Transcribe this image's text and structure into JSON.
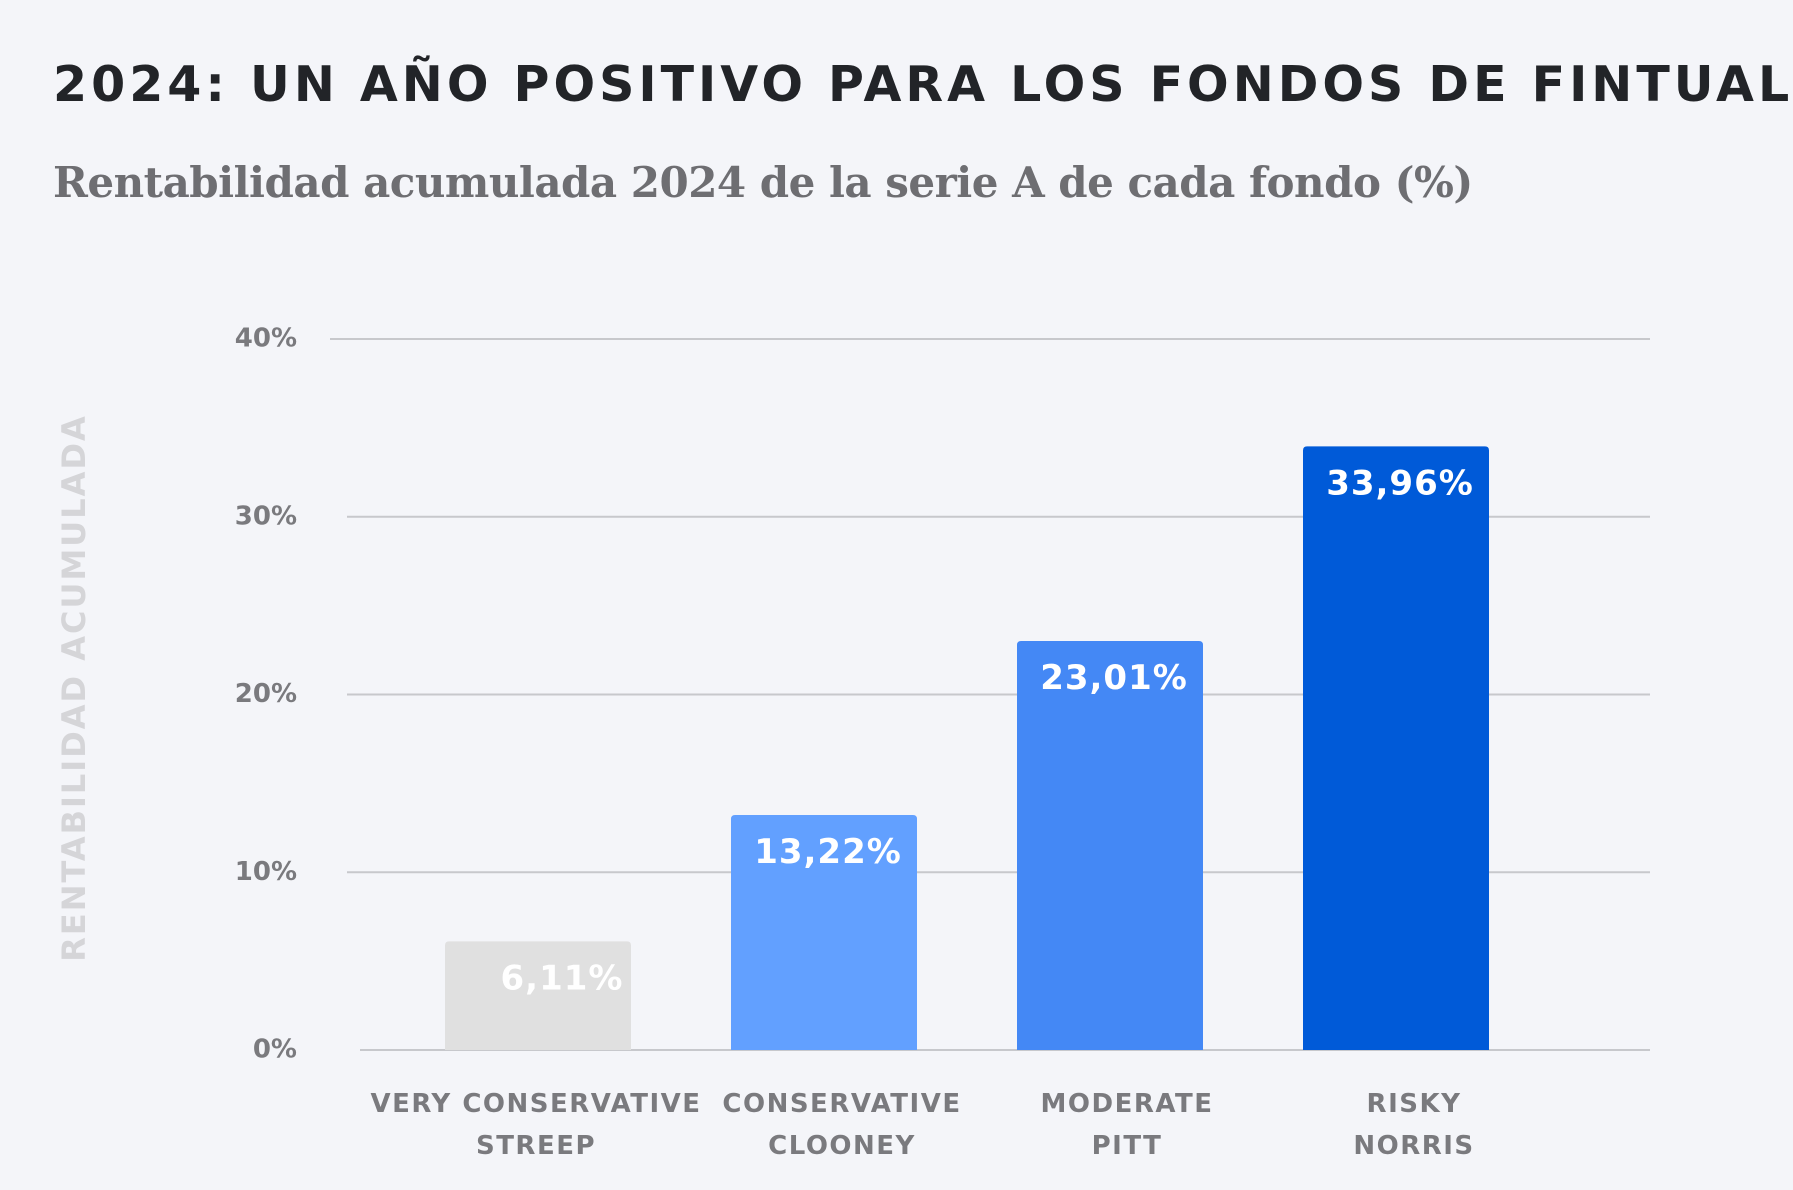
{
  "chart_data": {
    "type": "bar",
    "title": "2024: UN AÑO POSITIVO PARA LOS FONDOS DE FINTUAL",
    "subtitle": "Rentabilidad acumulada 2024 de la serie A de cada fondo (%)",
    "xlabel": "",
    "ylabel": "RENTABILIDAD ACUMULADA",
    "ylim": [
      0,
      40
    ],
    "yticks": [
      {
        "value": 0,
        "label": "0%"
      },
      {
        "value": 10,
        "label": "10%"
      },
      {
        "value": 20,
        "label": "20%"
      },
      {
        "value": 30,
        "label": "30%"
      },
      {
        "value": 40,
        "label": "40%"
      }
    ],
    "grid": true,
    "categories": [
      [
        "VERY CONSERVATIVE",
        "STREEP"
      ],
      [
        "CONSERVATIVE",
        "CLOONEY"
      ],
      [
        "MODERATE",
        "PITT"
      ],
      [
        "RISKY",
        "NORRIS"
      ]
    ],
    "values": [
      6.11,
      13.22,
      23.01,
      33.96
    ],
    "value_labels": [
      "6,11%",
      "13,22%",
      "23,01%",
      "33,96%"
    ],
    "colors": [
      "#e0e0e0",
      "#62a0ff",
      "#4488f5",
      "#005ad8"
    ]
  }
}
